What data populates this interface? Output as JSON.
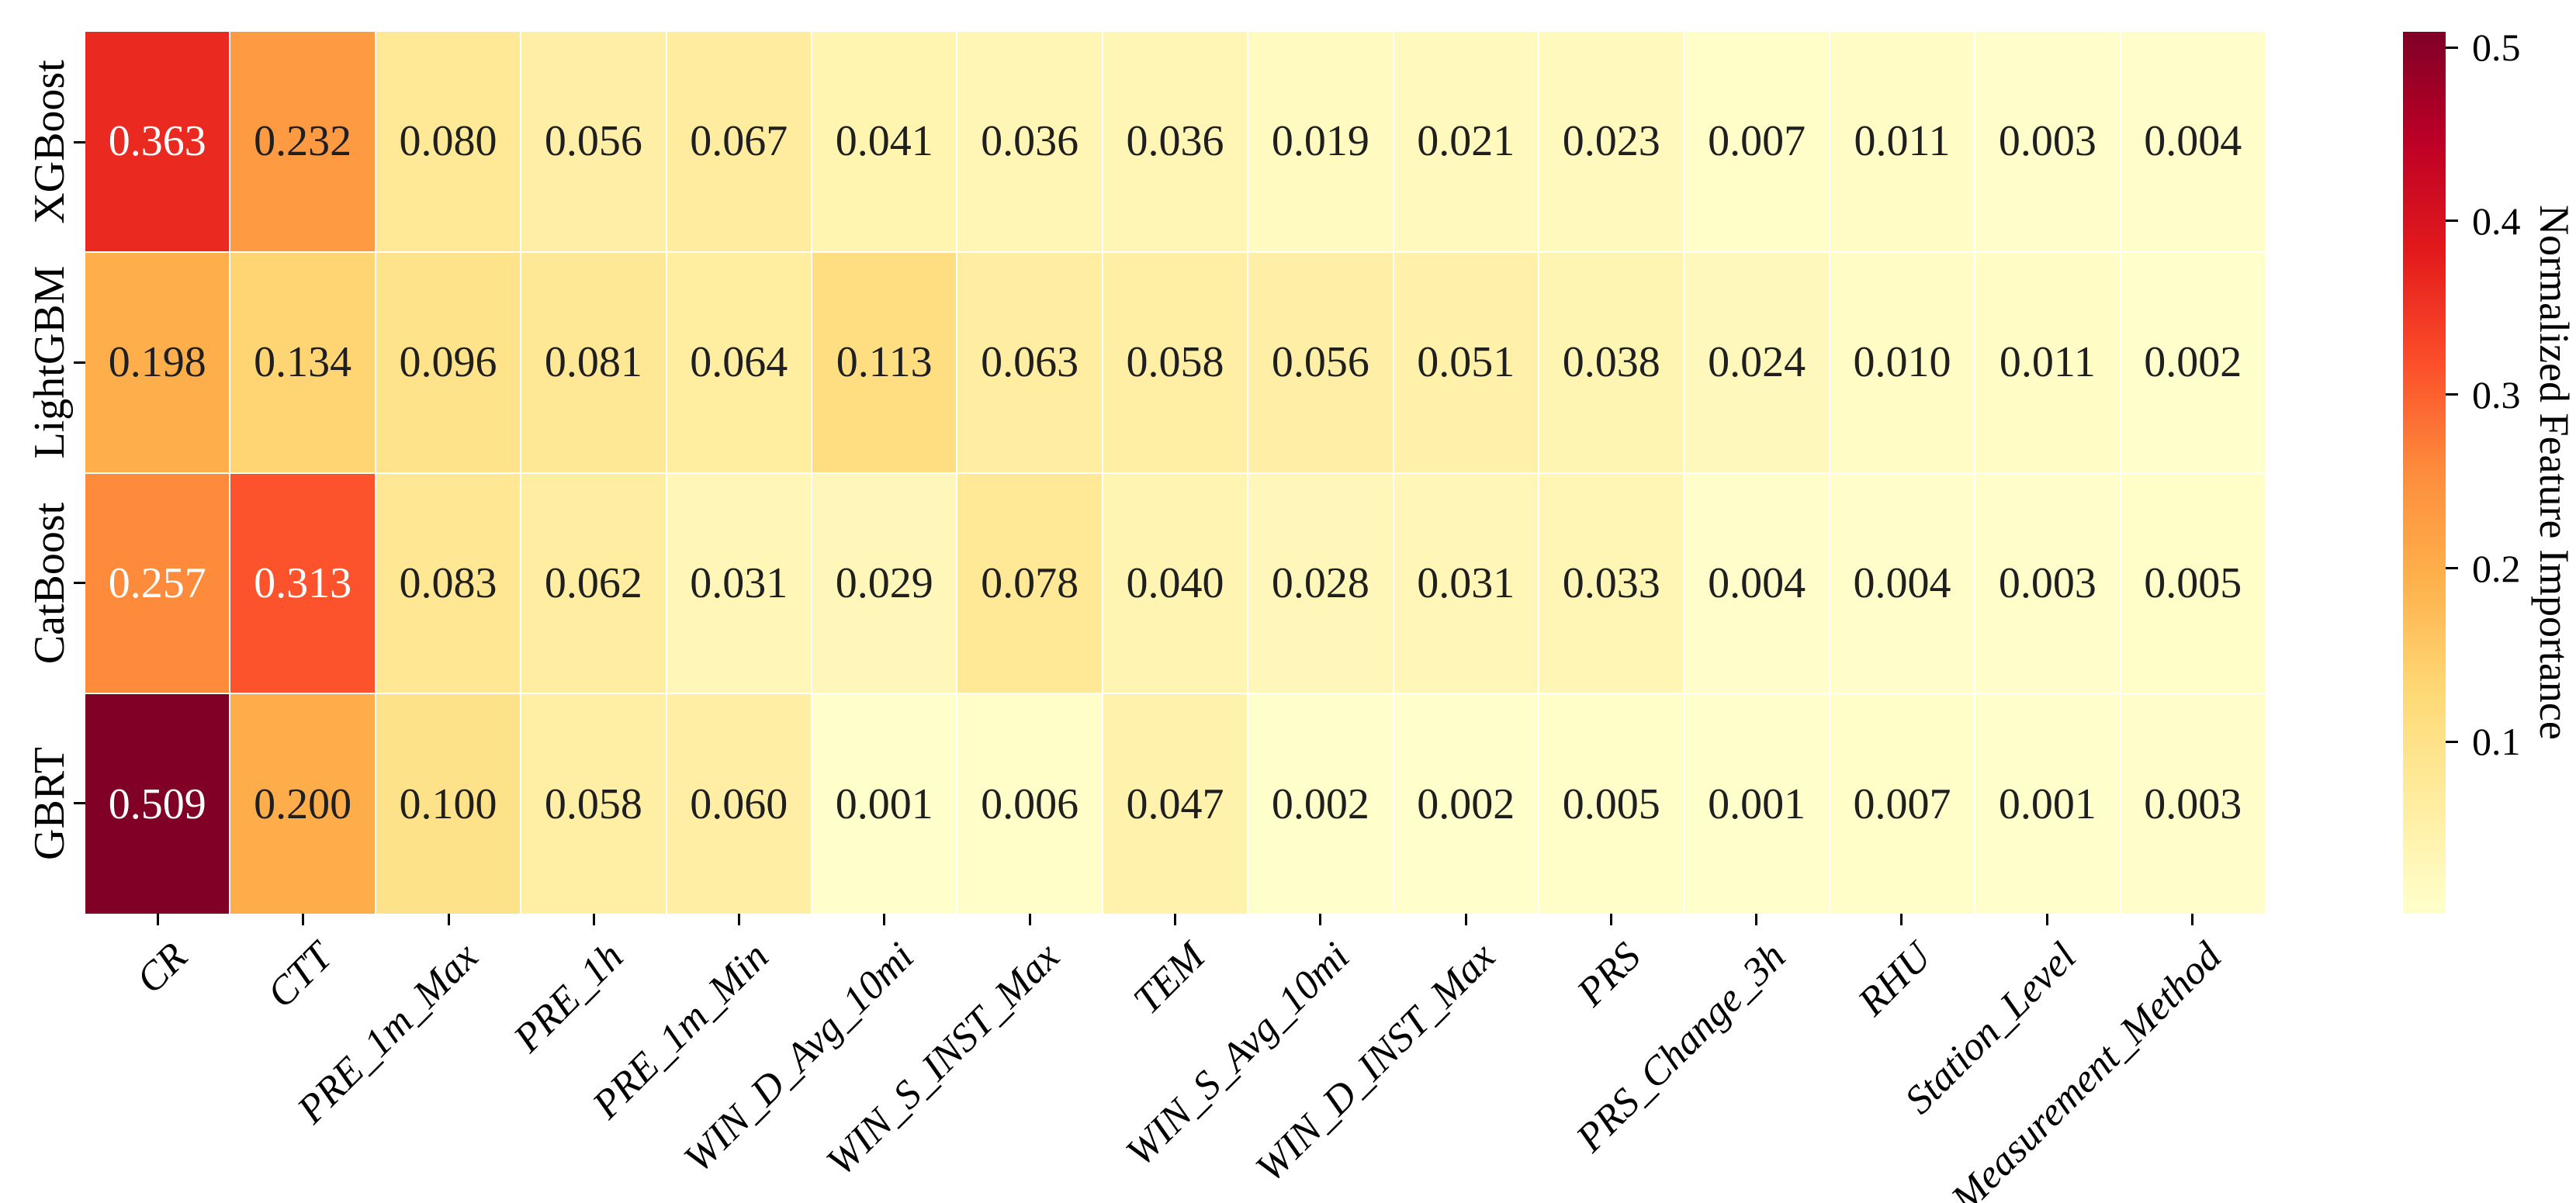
{
  "chart_data": {
    "type": "heatmap",
    "title": "",
    "rows": [
      "XGBoost",
      "LightGBM",
      "CatBoost",
      "GBRT"
    ],
    "columns": [
      "CR",
      "CTT",
      "PRE_1m_Max",
      "PRE_1h",
      "PRE_1m_Min",
      "WIN_D_Avg_10mi",
      "WIN_S_INST_Max",
      "TEM",
      "WIN_S_Avg_10mi",
      "WIN_D_INST_Max",
      "PRS",
      "PRS_Change_3h",
      "RHU",
      "Station_Level",
      "Measurement_Method"
    ],
    "values": [
      [
        0.363,
        0.232,
        0.08,
        0.056,
        0.067,
        0.041,
        0.036,
        0.036,
        0.019,
        0.021,
        0.023,
        0.007,
        0.011,
        0.003,
        0.004
      ],
      [
        0.198,
        0.134,
        0.096,
        0.081,
        0.064,
        0.113,
        0.063,
        0.058,
        0.056,
        0.051,
        0.038,
        0.024,
        0.01,
        0.011,
        0.002
      ],
      [
        0.257,
        0.313,
        0.083,
        0.062,
        0.031,
        0.029,
        0.078,
        0.04,
        0.028,
        0.031,
        0.033,
        0.004,
        0.004,
        0.003,
        0.005
      ],
      [
        0.509,
        0.2,
        0.1,
        0.058,
        0.06,
        0.001,
        0.006,
        0.047,
        0.002,
        0.002,
        0.005,
        0.001,
        0.007,
        0.001,
        0.003
      ]
    ],
    "value_decimals": 3,
    "vmin": 0.001,
    "vmax": 0.509,
    "colormap": {
      "name": "YlOrRd",
      "anchors": [
        "#FFFFCC",
        "#FFEDA0",
        "#FED976",
        "#FEB24C",
        "#FD8D3C",
        "#FC4E2A",
        "#E31A1C",
        "#BD0026",
        "#800026"
      ]
    },
    "colorbar": {
      "label": "Normalized Feature Importance",
      "ticks": [
        0.1,
        0.2,
        0.3,
        0.4,
        0.5
      ]
    },
    "colors": {
      "background": "#ffffff",
      "axis_tick": "#000000",
      "annotation_dark": "#1f1f1f",
      "annotation_light": "#ffffff"
    },
    "grid_lines": "on",
    "legend_position": "right-colorbar"
  }
}
